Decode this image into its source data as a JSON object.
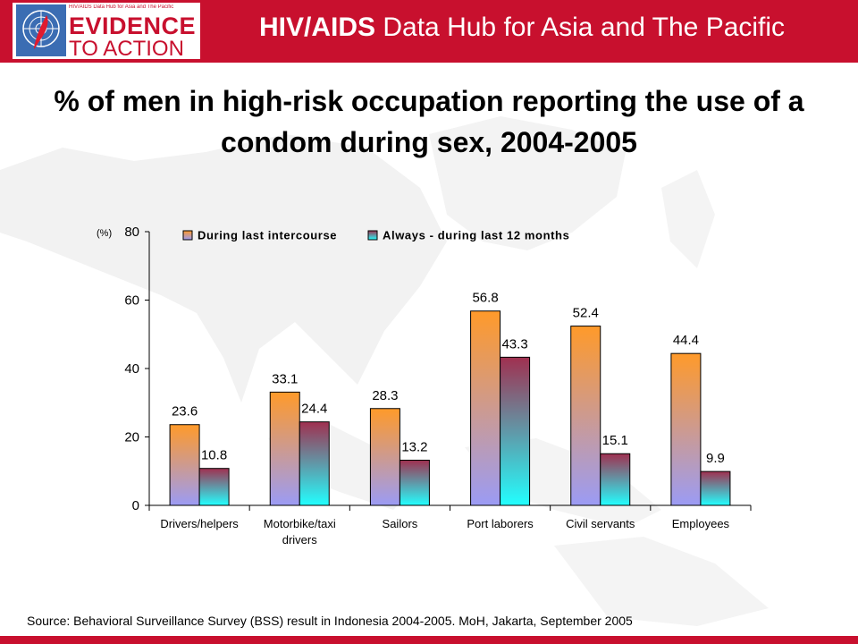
{
  "header": {
    "logo_small": "HIV/AIDS Data Hub for Asia and The Pacific",
    "logo_line1": "EVIDENCE",
    "logo_line2": "TO ACTION",
    "title_bold": "HIV/AIDS",
    "title_rest": " Data Hub for Asia and The Pacific"
  },
  "slide_title": "% of men in high-risk occupation reporting the use of a condom during sex, 2004-2005",
  "source": "Source: Behavioral Surveillance Survey (BSS) result in Indonesia 2004-2005. MoH, Jakarta, September 2005",
  "colors": {
    "brand_red": "#c8102e",
    "series1_top": "#ff9a2a",
    "series1_bottom": "#9b9bf5",
    "series2_top": "#a03050",
    "series2_bottom": "#22ffff"
  },
  "chart_data": {
    "type": "bar",
    "ylabel": "(%)",
    "ylim": [
      0,
      80
    ],
    "yticks": [
      0,
      20,
      40,
      60,
      80
    ],
    "grid": false,
    "legend_position": "top",
    "categories": [
      [
        "Drivers/helpers"
      ],
      [
        "Motorbike/taxi",
        "drivers"
      ],
      [
        "Sailors"
      ],
      [
        "Port laborers"
      ],
      [
        "Civil servants"
      ],
      [
        "Employees"
      ]
    ],
    "series": [
      {
        "name": "During last intercourse",
        "values": [
          23.6,
          33.1,
          28.3,
          56.8,
          52.4,
          44.4
        ]
      },
      {
        "name": "Always - during last 12 months",
        "values": [
          10.8,
          24.4,
          13.2,
          43.3,
          15.1,
          9.9
        ]
      }
    ]
  }
}
